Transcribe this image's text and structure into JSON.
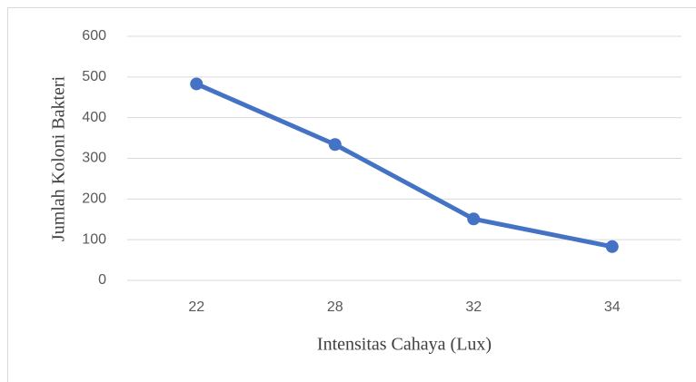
{
  "chart_data": {
    "type": "line",
    "x_label": "Intensitas Cahaya (Lux)",
    "y_label": "Jumlah Koloni Bakteri",
    "categories": [
      "22",
      "28",
      "32",
      "34"
    ],
    "series": [
      {
        "name": "Jumlah Koloni Bakteri",
        "color": "#4472c4",
        "values": [
          483,
          334,
          151,
          83
        ]
      }
    ],
    "ylim": [
      0,
      600
    ],
    "yticks": [
      0,
      100,
      200,
      300,
      400,
      500,
      600
    ],
    "grid": true,
    "legend": false
  }
}
